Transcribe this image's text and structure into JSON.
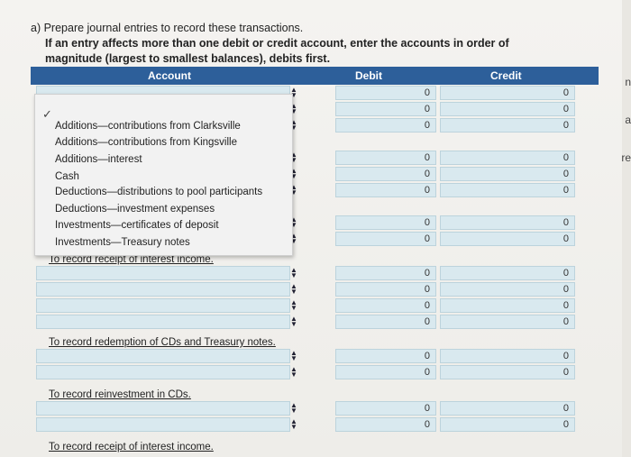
{
  "instructions": {
    "line1": "a) Prepare journal entries to record these transactions.",
    "line2": "If an entry affects more than one debit or credit account, enter the accounts in order of",
    "line3": "magnitude (largest to smallest balances), debits first."
  },
  "table": {
    "headers": {
      "account": "Account",
      "debit": "Debit",
      "credit": "Credit"
    }
  },
  "dropdown": {
    "options": [
      "Additions—contributions from Clarksville",
      "Additions—contributions from Kingsville",
      "Additions—interest",
      "Cash",
      "Deductions—distributions to pool participants",
      "Deductions—investment expenses",
      "Investments—certificates of deposit",
      "Investments—Treasury notes"
    ]
  },
  "notes": {
    "n1": "To record receipt of interest income.",
    "n2": "To record redemption of CDs and Treasury notes.",
    "n3": "To record reinvestment in CDs.",
    "n4": "To record receipt of interest income."
  },
  "zero": "0",
  "right_edge": {
    "a": "n",
    "b": "a",
    "c": "re"
  }
}
